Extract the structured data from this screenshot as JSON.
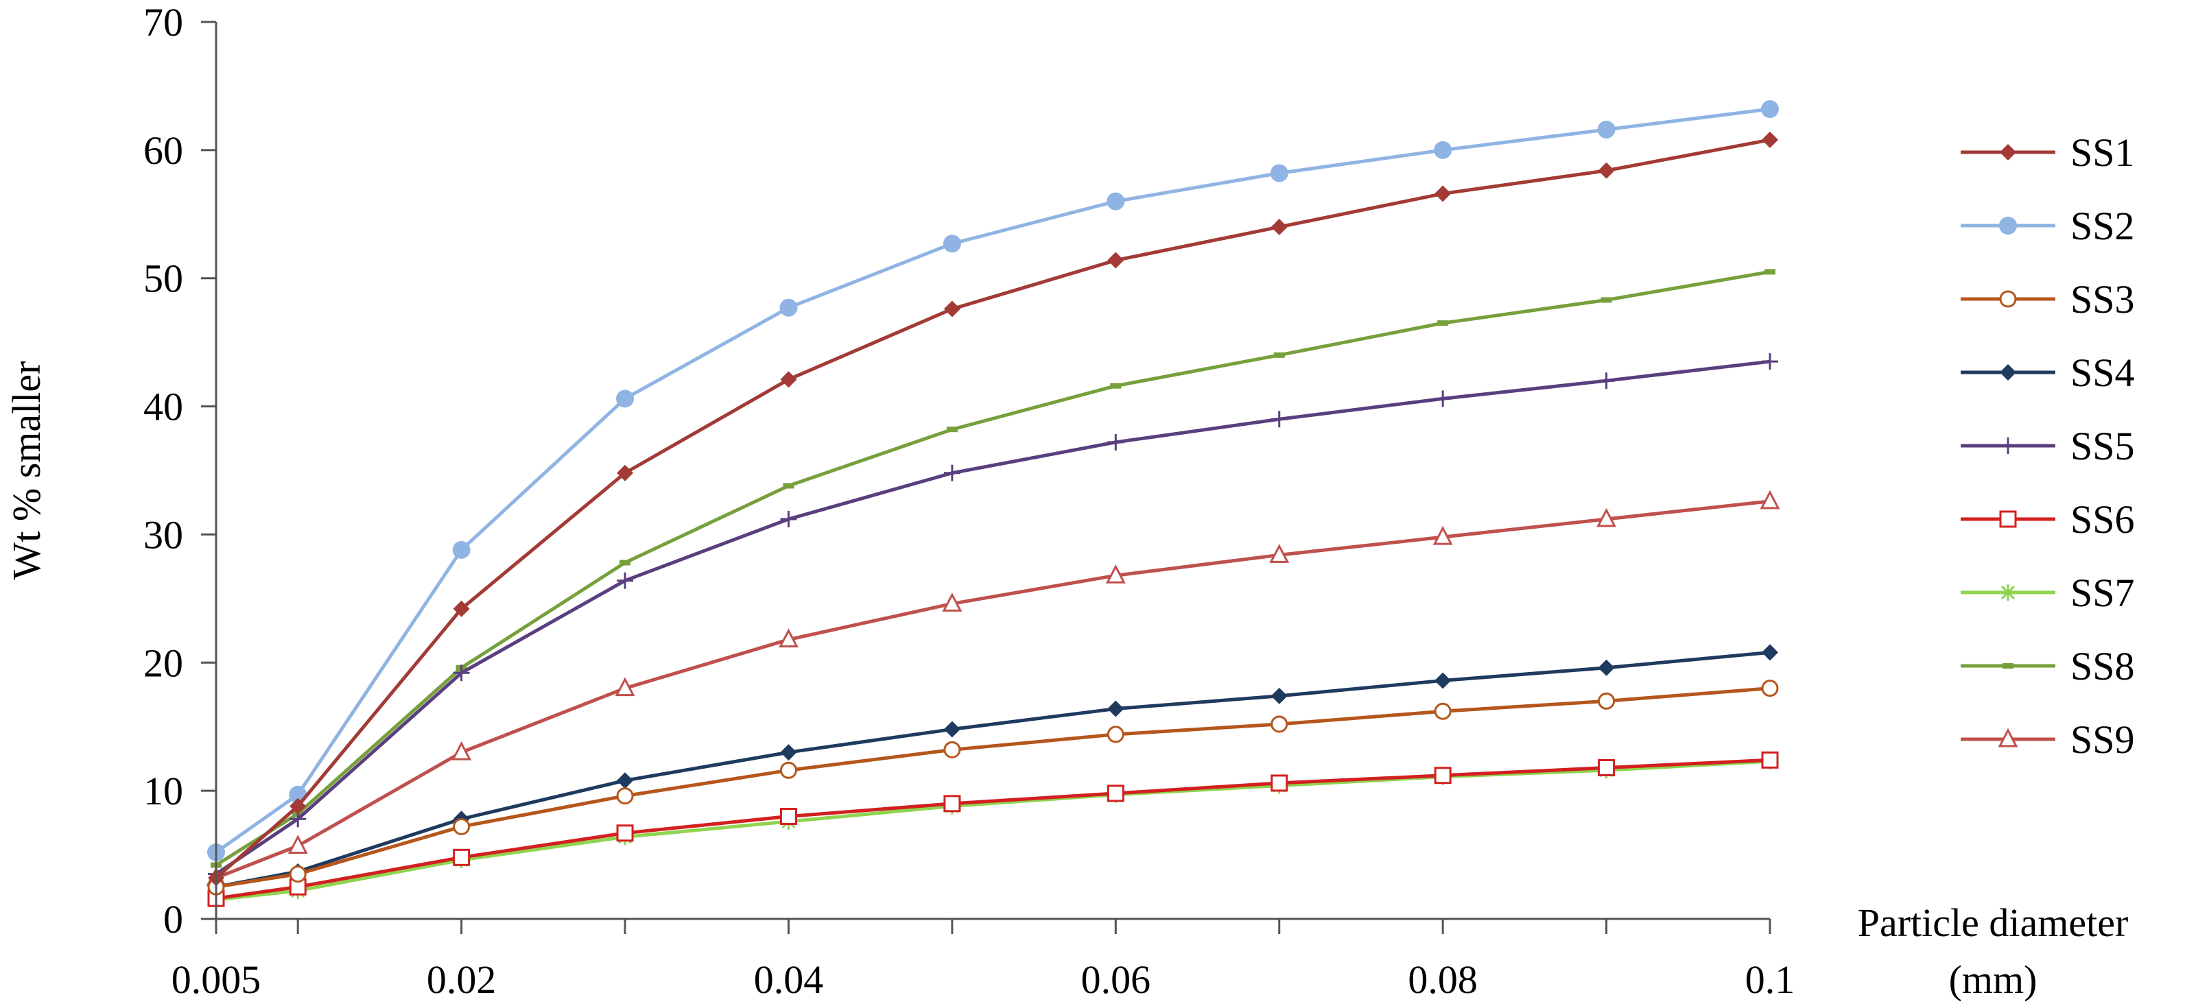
{
  "chart_data": {
    "type": "line",
    "xlabel": "Particle diameter (mm)",
    "ylabel": "Wt % smaller",
    "x": [
      0.005,
      0.01,
      0.02,
      0.03,
      0.04,
      0.05,
      0.06,
      0.07,
      0.08,
      0.09,
      0.1
    ],
    "x_tick_labels": [
      "0.005",
      "0.02",
      "0.04",
      "0.06",
      "0.08",
      "0.1"
    ],
    "x_tick_values": [
      0.005,
      0.02,
      0.04,
      0.06,
      0.08,
      0.1
    ],
    "xlim": [
      0.005,
      0.1
    ],
    "ylim": [
      0,
      70
    ],
    "y_ticks": [
      0,
      10,
      20,
      30,
      40,
      50,
      60,
      70
    ],
    "grid": false,
    "legend_position": "right",
    "series": [
      {
        "name": "SS1",
        "color": "#a33a35",
        "marker": "diamond",
        "values": [
          3.2,
          8.8,
          24.2,
          34.8,
          42.1,
          47.6,
          51.4,
          54.0,
          56.6,
          58.4,
          60.8
        ]
      },
      {
        "name": "SS2",
        "color": "#8fb4e3",
        "marker": "circle",
        "values": [
          5.2,
          9.7,
          28.8,
          40.6,
          47.7,
          52.7,
          56.0,
          58.2,
          60.0,
          61.6,
          63.2
        ]
      },
      {
        "name": "SS3",
        "color": "#b5561c",
        "marker": "circle-open",
        "values": [
          2.5,
          3.5,
          7.2,
          9.6,
          11.6,
          13.2,
          14.4,
          15.2,
          16.2,
          17.0,
          18.0
        ]
      },
      {
        "name": "SS4",
        "color": "#1f3a5f",
        "marker": "diamond",
        "values": [
          2.5,
          3.7,
          7.8,
          10.8,
          13.0,
          14.8,
          16.4,
          17.4,
          18.6,
          19.6,
          20.8
        ]
      },
      {
        "name": "SS5",
        "color": "#5a3f7e",
        "marker": "plus",
        "values": [
          3.5,
          7.8,
          19.2,
          26.4,
          31.2,
          34.8,
          37.2,
          39.0,
          40.6,
          42.0,
          43.5
        ]
      },
      {
        "name": "SS6",
        "color": "#d22020",
        "marker": "square-open",
        "values": [
          1.6,
          2.5,
          4.8,
          6.7,
          8.0,
          9.0,
          9.8,
          10.6,
          11.2,
          11.8,
          12.4
        ]
      },
      {
        "name": "SS7",
        "color": "#8fd44f",
        "marker": "asterisk",
        "values": [
          1.5,
          2.2,
          4.6,
          6.4,
          7.6,
          8.8,
          9.7,
          10.4,
          11.1,
          11.6,
          12.3
        ]
      },
      {
        "name": "SS8",
        "color": "#77a03c",
        "marker": "dash",
        "values": [
          4.2,
          8.2,
          19.6,
          27.8,
          33.8,
          38.2,
          41.6,
          44.0,
          46.5,
          48.3,
          50.5
        ]
      },
      {
        "name": "SS9",
        "color": "#c0504d",
        "marker": "triangle-open",
        "values": [
          3.2,
          5.7,
          13.0,
          18.0,
          21.8,
          24.6,
          26.8,
          28.4,
          29.8,
          31.2,
          32.6
        ]
      }
    ]
  }
}
